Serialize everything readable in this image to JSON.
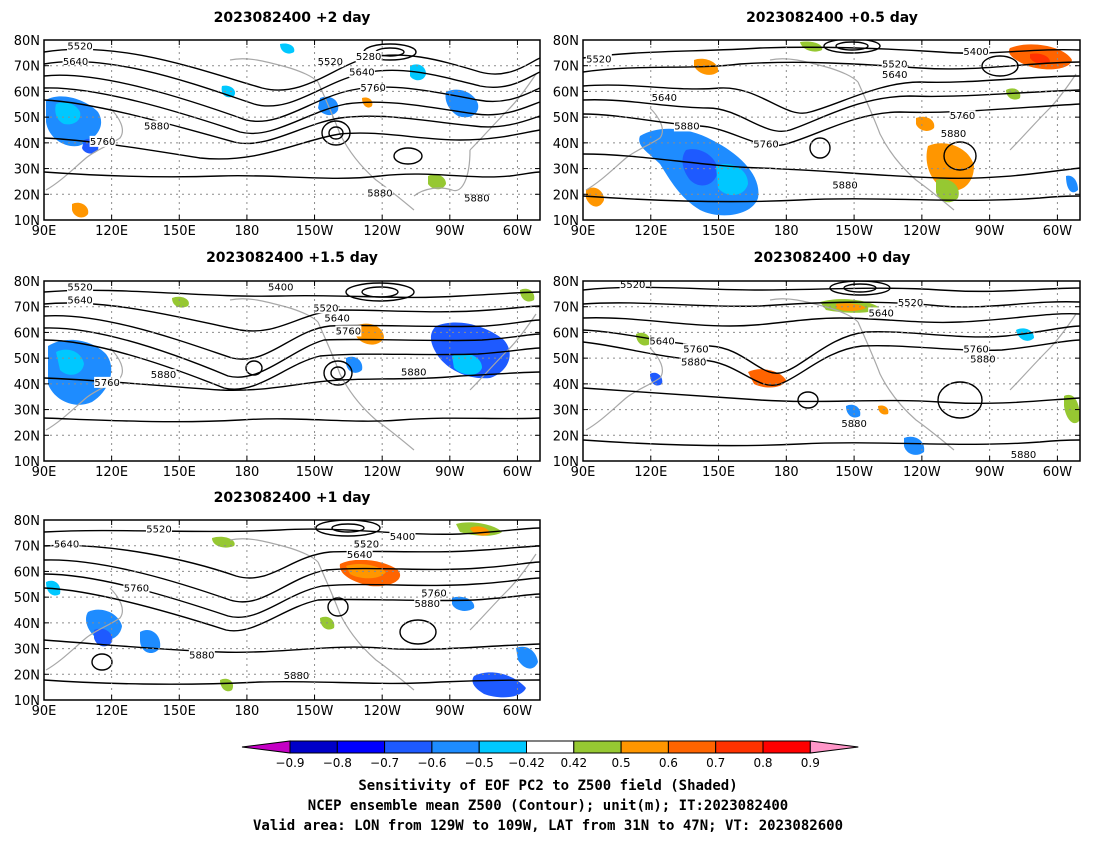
{
  "colors": {
    "neg": [
      "#c400c4",
      "#0000c8",
      "#0000ff",
      "#1e5aff",
      "#1e8cff",
      "#00c8ff"
    ],
    "pos": [
      "#96c832",
      "#ff9600",
      "#ff6400",
      "#ff3200",
      "#ff0000",
      "#ff96c8"
    ],
    "contour": "#000000",
    "coast": "#a8a8a8",
    "grid": "#8c8c8c"
  },
  "panels": [
    {
      "id": "p2",
      "title": "2023082400 +2 day",
      "contour_labels": [
        {
          "text": "5520",
          "lon": 106,
          "lat": 77
        },
        {
          "text": "5640",
          "lon": 104,
          "lat": 71
        },
        {
          "text": "5520",
          "lon": -143,
          "lat": 71
        },
        {
          "text": "5280",
          "lon": -126,
          "lat": 73
        },
        {
          "text": "5640",
          "lon": -129,
          "lat": 67
        },
        {
          "text": "5760",
          "lon": -124,
          "lat": 61
        },
        {
          "text": "5880",
          "lon": 140,
          "lat": 46
        },
        {
          "text": "5760",
          "lon": 116,
          "lat": 40
        },
        {
          "text": "5880",
          "lon": -121,
          "lat": 20
        },
        {
          "text": "5880",
          "lon": -78,
          "lat": 18
        }
      ]
    },
    {
      "id": "p05",
      "title": "2023082400 +0.5 day",
      "contour_labels": [
        {
          "text": "5520",
          "lon": 97,
          "lat": 72
        },
        {
          "text": "5400",
          "lon": -96,
          "lat": 75
        },
        {
          "text": "5520",
          "lon": -132,
          "lat": 70
        },
        {
          "text": "5640",
          "lon": -132,
          "lat": 66
        },
        {
          "text": "5640",
          "lon": 126,
          "lat": 57
        },
        {
          "text": "5880",
          "lon": 136,
          "lat": 46
        },
        {
          "text": "5760",
          "lon": -102,
          "lat": 50
        },
        {
          "text": "5880",
          "lon": -106,
          "lat": 43
        },
        {
          "text": "5760",
          "lon": 171,
          "lat": 39
        },
        {
          "text": "5880",
          "lon": -154,
          "lat": 23
        }
      ]
    },
    {
      "id": "p15",
      "title": "2023082400 +1.5 day",
      "contour_labels": [
        {
          "text": "5520",
          "lon": 106,
          "lat": 77
        },
        {
          "text": "5640",
          "lon": 106,
          "lat": 72
        },
        {
          "text": "5400",
          "lon": -165,
          "lat": 77
        },
        {
          "text": "5520",
          "lon": -145,
          "lat": 69
        },
        {
          "text": "5640",
          "lon": -140,
          "lat": 65
        },
        {
          "text": "5760",
          "lon": -135,
          "lat": 60
        },
        {
          "text": "5880",
          "lon": 143,
          "lat": 43
        },
        {
          "text": "5760",
          "lon": 118,
          "lat": 40
        },
        {
          "text": "5880",
          "lon": -106,
          "lat": 44
        }
      ]
    },
    {
      "id": "p0",
      "title": "2023082400 +0 day",
      "contour_labels": [
        {
          "text": "5520",
          "lon": 112,
          "lat": 78
        },
        {
          "text": "5520",
          "lon": -125,
          "lat": 71
        },
        {
          "text": "5640",
          "lon": -138,
          "lat": 67
        },
        {
          "text": "5640",
          "lon": 125,
          "lat": 56
        },
        {
          "text": "5760",
          "lon": 140,
          "lat": 53
        },
        {
          "text": "5880",
          "lon": 139,
          "lat": 48
        },
        {
          "text": "5760",
          "lon": -96,
          "lat": 53
        },
        {
          "text": "5880",
          "lon": -93,
          "lat": 49
        },
        {
          "text": "5880",
          "lon": -150,
          "lat": 24
        },
        {
          "text": "5880",
          "lon": -75,
          "lat": 12
        }
      ]
    },
    {
      "id": "p1",
      "title": "2023082400 +1 day",
      "contour_labels": [
        {
          "text": "5520",
          "lon": 141,
          "lat": 76
        },
        {
          "text": "5640",
          "lon": 100,
          "lat": 70
        },
        {
          "text": "5400",
          "lon": -111,
          "lat": 73
        },
        {
          "text": "5520",
          "lon": -127,
          "lat": 70
        },
        {
          "text": "5640",
          "lon": -130,
          "lat": 66
        },
        {
          "text": "5760",
          "lon": 131,
          "lat": 53
        },
        {
          "text": "5760",
          "lon": -97,
          "lat": 51
        },
        {
          "text": "5880",
          "lon": -100,
          "lat": 47
        },
        {
          "text": "5880",
          "lon": 160,
          "lat": 27
        },
        {
          "text": "5880",
          "lon": -158,
          "lat": 19
        }
      ]
    }
  ],
  "axes": {
    "lat_labels": [
      "10N",
      "20N",
      "30N",
      "40N",
      "50N",
      "60N",
      "70N",
      "80N"
    ],
    "lon_labels": [
      "90E",
      "120E",
      "150E",
      "180",
      "150W",
      "120W",
      "90W",
      "60W"
    ]
  },
  "colorbar": {
    "labels": [
      "-0.9",
      "-0.8",
      "-0.7",
      "-0.6",
      "-0.5",
      "-0.42",
      "0.42",
      "0.5",
      "0.6",
      "0.7",
      "0.8",
      "0.9"
    ]
  },
  "caption": {
    "line1": "Sensitivity of EOF PC2 to Z500 field (Shaded)",
    "line2": "NCEP ensemble mean Z500 (Contour); unit(m); IT:2023082400",
    "line3": "Valid area: LON from 129W to 109W, LAT from 31N to 47N; VT: 2023082600"
  }
}
